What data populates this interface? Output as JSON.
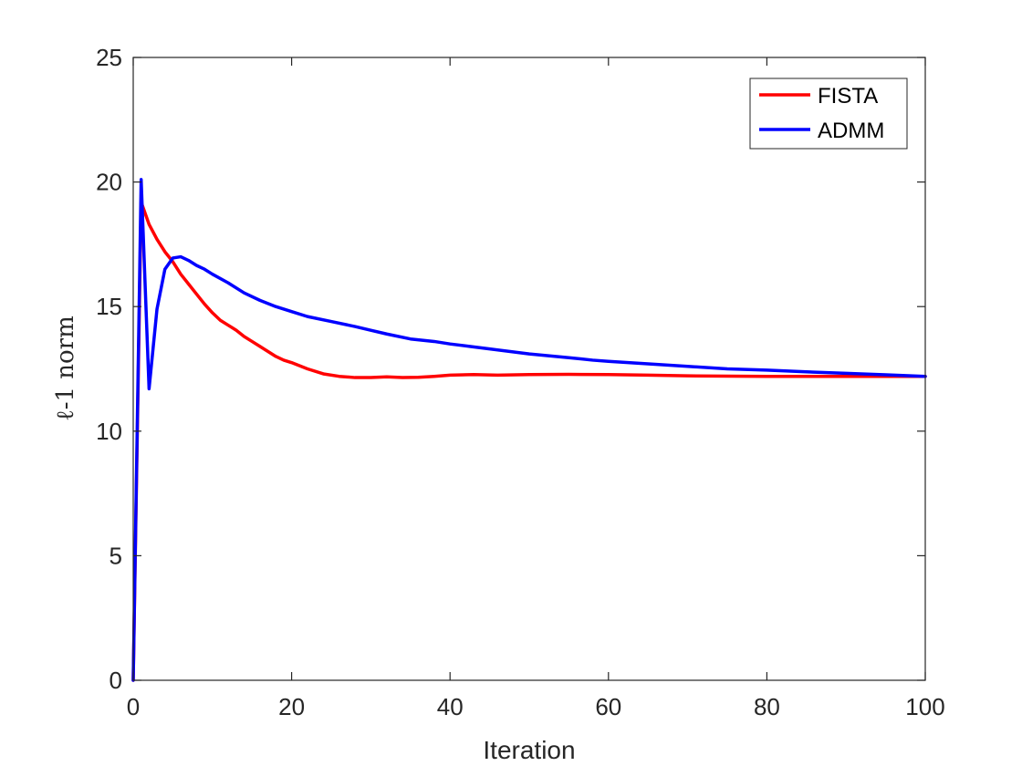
{
  "chart_data": {
    "type": "line",
    "title": "",
    "xlabel": "Iteration",
    "ylabel": "ℓ-1 norm",
    "xlim": [
      0,
      100
    ],
    "ylim": [
      0,
      25
    ],
    "xticks": [
      0,
      20,
      40,
      60,
      80,
      100
    ],
    "yticks": [
      0,
      5,
      10,
      15,
      20,
      25
    ],
    "grid": false,
    "legend": "top-right",
    "series": [
      {
        "name": "FISTA",
        "color": "#ff0000",
        "x": [
          0,
          1,
          2,
          3,
          4,
          5,
          6,
          7,
          8,
          9,
          10,
          11,
          12,
          13,
          14,
          15,
          16,
          17,
          18,
          19,
          20,
          22,
          24,
          26,
          28,
          30,
          32,
          34,
          36,
          38,
          40,
          43,
          46,
          50,
          55,
          60,
          65,
          70,
          80,
          90,
          100
        ],
        "y": [
          0,
          19.2,
          18.3,
          17.7,
          17.2,
          16.8,
          16.3,
          15.9,
          15.5,
          15.1,
          14.75,
          14.45,
          14.25,
          14.05,
          13.8,
          13.6,
          13.4,
          13.2,
          13.0,
          12.85,
          12.75,
          12.5,
          12.3,
          12.2,
          12.15,
          12.15,
          12.18,
          12.15,
          12.16,
          12.2,
          12.25,
          12.27,
          12.25,
          12.27,
          12.28,
          12.27,
          12.25,
          12.22,
          12.2,
          12.2,
          12.2
        ]
      },
      {
        "name": "ADMM",
        "color": "#0000ff",
        "x": [
          0,
          1,
          2,
          3,
          4,
          5,
          6,
          7,
          8,
          9,
          10,
          12,
          14,
          16,
          18,
          20,
          22,
          25,
          28,
          30,
          32,
          35,
          38,
          40,
          45,
          50,
          55,
          58,
          60,
          65,
          70,
          75,
          80,
          85,
          90,
          95,
          100
        ],
        "y": [
          0,
          20.1,
          11.7,
          14.9,
          16.5,
          16.95,
          17.0,
          16.85,
          16.65,
          16.5,
          16.3,
          15.95,
          15.55,
          15.25,
          15.0,
          14.8,
          14.6,
          14.4,
          14.2,
          14.05,
          13.9,
          13.7,
          13.6,
          13.5,
          13.3,
          13.1,
          12.95,
          12.85,
          12.8,
          12.7,
          12.6,
          12.5,
          12.45,
          12.38,
          12.32,
          12.26,
          12.2
        ]
      }
    ]
  }
}
